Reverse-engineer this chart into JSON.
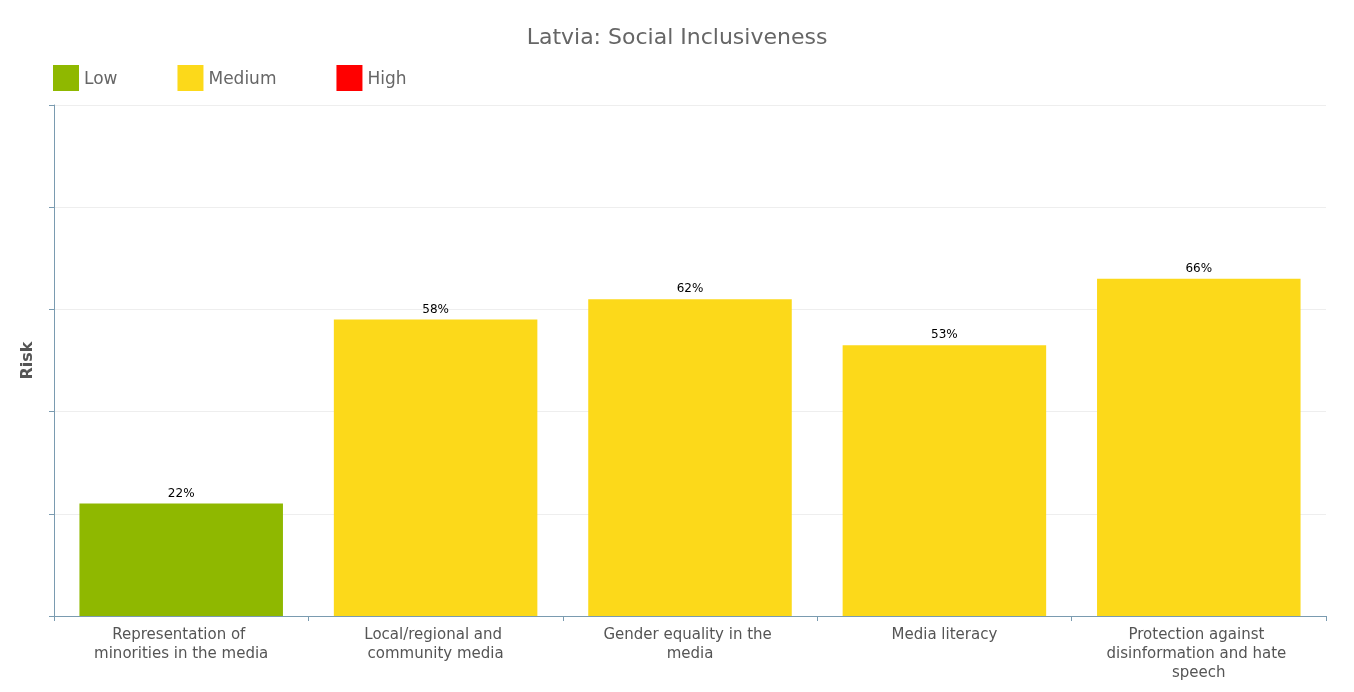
{
  "chart_data": {
    "type": "bar",
    "title": "Latvia: Social Inclusiveness",
    "ylabel": "Risk",
    "categories": [
      "Representation of minorities in the media",
      "Local/regional and community media",
      "Gender equality in the media",
      "Media literacy",
      "Protection against disinformation and hate speech"
    ],
    "series": [
      {
        "name": "Low",
        "color": "#8fb800",
        "values": [
          22,
          null,
          null,
          null,
          null
        ],
        "value_labels": [
          "22%",
          null,
          null,
          null,
          null
        ]
      },
      {
        "name": "Medium",
        "color": "#fcd91a",
        "values": [
          null,
          58,
          62,
          53,
          66
        ],
        "value_labels": [
          null,
          "58%",
          "62%",
          "53%",
          "66%"
        ]
      },
      {
        "name": "High",
        "color": "#ff0000",
        "values": [
          null,
          null,
          null,
          null,
          null
        ],
        "value_labels": [
          null,
          null,
          null,
          null,
          null
        ]
      }
    ],
    "stacked": true,
    "ylim": [
      0,
      100
    ],
    "yticks": [
      {
        "value": 0,
        "label": null
      },
      {
        "value": 20,
        "label": null
      },
      {
        "value": 40,
        "label": null
      },
      {
        "value": 60,
        "label": null
      },
      {
        "value": 80,
        "label": null
      },
      {
        "value": 100,
        "label": null
      }
    ],
    "grid": "y",
    "legend": "top left",
    "tick_labels": "x"
  }
}
